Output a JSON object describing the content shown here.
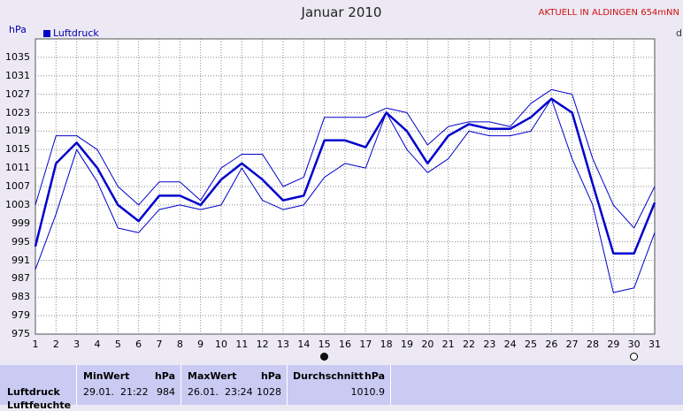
{
  "header": {
    "note": "AKTUELL IN ALDINGEN 654mNN",
    "unit_left": "hPa",
    "unit_right": "d"
  },
  "chart_data": {
    "type": "line",
    "title": "Januar 2010",
    "ylabel": "hPa",
    "legend": "Luftdruck",
    "ylim": [
      975,
      1039
    ],
    "yticks": [
      "975",
      "979",
      "983",
      "987",
      "991",
      "995",
      "999",
      "1003",
      "1007",
      "1011",
      "1015",
      "1019",
      "1023",
      "1027",
      "1031",
      "1035"
    ],
    "x": [
      "1",
      "2",
      "3",
      "4",
      "5",
      "6",
      "7",
      "8",
      "9",
      "10",
      "11",
      "12",
      "13",
      "14",
      "15",
      "16",
      "17",
      "18",
      "19",
      "20",
      "21",
      "22",
      "23",
      "24",
      "25",
      "26",
      "27",
      "28",
      "29",
      "30",
      "31"
    ],
    "series": [
      {
        "name": "Luftdruck",
        "role": "mean",
        "values": [
          994,
          1012,
          1016.5,
          1011,
          1003,
          999.5,
          1005,
          1005,
          1003,
          1008.5,
          1012,
          1008.5,
          1004,
          1005,
          1017,
          1017,
          1015.5,
          1023,
          1019,
          1012,
          1018,
          1020.5,
          1019.5,
          1019.5,
          1022,
          1026,
          1023,
          1007.5,
          992.5,
          992.5,
          1003.5
        ]
      },
      {
        "role": "max",
        "values": [
          1003,
          1018,
          1018,
          1015,
          1007,
          1003,
          1008,
          1008,
          1004,
          1011,
          1014,
          1014,
          1007,
          1009,
          1022,
          1022,
          1022,
          1024,
          1023,
          1016,
          1020,
          1021,
          1021,
          1020,
          1025,
          1028,
          1027,
          1013,
          1003,
          998,
          1007
        ]
      },
      {
        "role": "min",
        "values": [
          989,
          1001,
          1015,
          1008,
          998,
          997,
          1002,
          1003,
          1002,
          1003,
          1011,
          1004,
          1002,
          1003,
          1009,
          1012,
          1011,
          1023,
          1015,
          1010,
          1013,
          1019,
          1018,
          1018,
          1019,
          1026,
          1013,
          1003,
          984,
          985,
          997
        ]
      }
    ],
    "grid": true,
    "gridStyle": "dotted",
    "lineColor": "#0000cc",
    "moonPhases": [
      {
        "day": 15,
        "phase": "new-moon-icon"
      },
      {
        "day": 30,
        "phase": "full-moon-icon"
      }
    ]
  },
  "stats": {
    "row_label": "Luftdruck",
    "row_label2": "Luftfeuchte",
    "min_label": "MinWert",
    "min_unit": "hPa",
    "min_time": "29.01.  21:22",
    "min_value": "984",
    "max_label": "MaxWert",
    "max_unit": "hPa",
    "max_time": "26.01.  23:24",
    "max_value": "1028",
    "avg_label": "Durchschnitt",
    "avg_unit": "hPa",
    "avg_value": "1010.9"
  }
}
